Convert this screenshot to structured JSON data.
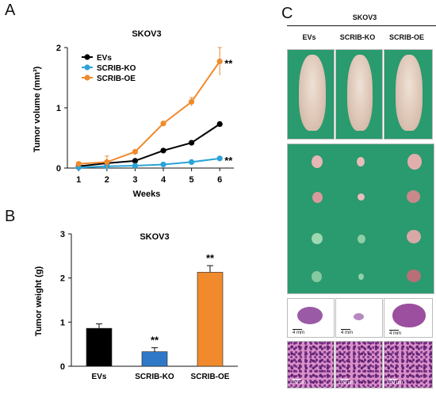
{
  "panels": {
    "a": "A",
    "b": "B",
    "c": "C"
  },
  "chart_data": [
    {
      "type": "line",
      "title": "SKOV3",
      "xlabel": "Weeks",
      "ylabel": "Tumor volume (mm³)",
      "x": [
        1,
        2,
        3,
        4,
        5,
        6
      ],
      "xlim": [
        0.6,
        6.5
      ],
      "ylim": [
        0,
        2
      ],
      "yticks": [
        "0",
        "1",
        "2"
      ],
      "xticks": [
        "1",
        "2",
        "3",
        "4",
        "5",
        "6"
      ],
      "legend_position": "top-left",
      "series": [
        {
          "name": "EVs",
          "color": "#000000",
          "values": [
            0.03,
            0.08,
            0.12,
            0.29,
            0.42,
            0.73
          ],
          "errors": [
            0.01,
            0.02,
            0.02,
            0.03,
            0.03,
            0.03
          ]
        },
        {
          "name": "SCRIB-KO",
          "color": "#2aa3d8",
          "values": [
            0.01,
            0.03,
            0.04,
            0.06,
            0.1,
            0.16
          ],
          "errors": [
            0.01,
            0.01,
            0.01,
            0.01,
            0.01,
            0.02
          ]
        },
        {
          "name": "SCRIB-OE",
          "color": "#f08a2c",
          "values": [
            0.07,
            0.1,
            0.27,
            0.74,
            1.1,
            1.77
          ],
          "errors": [
            0.02,
            0.1,
            0.02,
            0.03,
            0.07,
            0.23
          ]
        }
      ],
      "annotations": [
        {
          "series": "SCRIB-OE",
          "x": 6,
          "text": "**"
        },
        {
          "series": "SCRIB-KO",
          "x": 6,
          "text": "**"
        }
      ]
    },
    {
      "type": "bar",
      "title": "SKOV3",
      "xlabel": "",
      "ylabel": "Tumor weight (g)",
      "categories": [
        "EVs",
        "SCRIB-KO",
        "SCRIB-OE"
      ],
      "values": [
        0.86,
        0.33,
        2.13
      ],
      "errors": [
        0.1,
        0.09,
        0.15
      ],
      "colors": [
        "#000000",
        "#2f78c8",
        "#f08a2c"
      ],
      "ylim": [
        0,
        3
      ],
      "yticks": [
        "0",
        "1",
        "2",
        "3"
      ],
      "annotations": [
        {
          "category": "SCRIB-KO",
          "text": "**"
        },
        {
          "category": "SCRIB-OE",
          "text": "**"
        }
      ]
    }
  ],
  "panel_c": {
    "title": "SKOV3",
    "columns": [
      "EVs",
      "SCRIB-KO",
      "SCRIB-OE"
    ],
    "scale_small": "4 mm",
    "scale_micro": "100 μm"
  }
}
